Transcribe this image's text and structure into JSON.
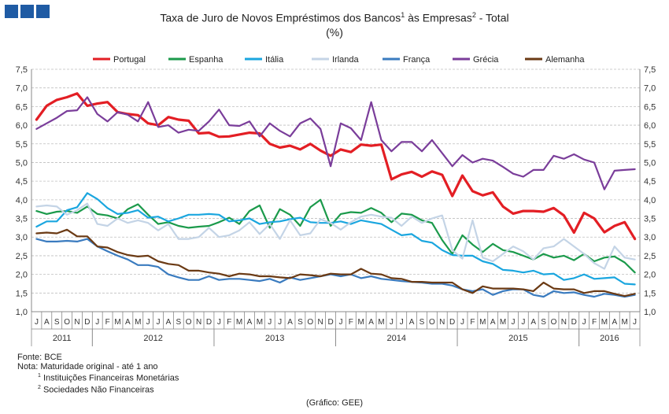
{
  "brand": {
    "squares": [
      "#1f5ba4",
      "#1f5ba4",
      "#1f5ba4"
    ]
  },
  "title": {
    "main": "Taxa de Juro de Novos Empréstimos dos Bancos",
    "sup1": "1",
    "mid": " às Empresas",
    "sup2": "2",
    "tail": " - Total",
    "unit": "(%)"
  },
  "notes": {
    "fonte": "Fonte: BCE",
    "nota": "Nota: Maturidade original - até 1 ano",
    "n1_sup": "1",
    "n1": " Instituições Financeiras Monetárias",
    "n2_sup": "2",
    "n2": " Sociedades Não Financeiras"
  },
  "credit": "(Gráfico: GEE)",
  "chart_data": {
    "type": "line",
    "ylim": [
      1.0,
      7.5
    ],
    "yticks": [
      "1,0",
      "1,5",
      "2,0",
      "2,5",
      "3,0",
      "3,5",
      "4,0",
      "4,5",
      "5,0",
      "5,5",
      "6,0",
      "6,5",
      "7,0",
      "7,5"
    ],
    "grid": true,
    "legend_position": "top",
    "months": [
      "J",
      "A",
      "S",
      "O",
      "N",
      "D",
      "J",
      "F",
      "M",
      "A",
      "M",
      "J",
      "J",
      "A",
      "S",
      "O",
      "N",
      "D",
      "J",
      "F",
      "M",
      "A",
      "M",
      "J",
      "J",
      "A",
      "S",
      "O",
      "N",
      "D",
      "J",
      "F",
      "M",
      "A",
      "M",
      "J",
      "J",
      "A",
      "S",
      "O",
      "N",
      "D",
      "J",
      "F",
      "M",
      "A",
      "M",
      "J",
      "J",
      "A",
      "S",
      "O",
      "N",
      "D",
      "J",
      "F",
      "M",
      "A",
      "M",
      "J"
    ],
    "years": [
      {
        "label": "2011",
        "start": 0,
        "end": 6
      },
      {
        "label": "2012",
        "start": 6,
        "end": 18
      },
      {
        "label": "2013",
        "start": 18,
        "end": 30
      },
      {
        "label": "2014",
        "start": 30,
        "end": 42
      },
      {
        "label": "2015",
        "start": 42,
        "end": 54
      },
      {
        "label": "2016",
        "start": 54,
        "end": 60
      }
    ],
    "series": [
      {
        "name": "Portugal",
        "color": "#e31e24",
        "width": 3.2,
        "values": [
          6.15,
          6.52,
          6.68,
          6.75,
          6.85,
          6.52,
          6.58,
          6.62,
          6.35,
          6.3,
          6.27,
          6.05,
          6.0,
          6.22,
          6.15,
          6.12,
          5.78,
          5.8,
          5.69,
          5.7,
          5.75,
          5.8,
          5.78,
          5.5,
          5.4,
          5.45,
          5.35,
          5.5,
          5.32,
          5.18,
          5.35,
          5.28,
          5.48,
          5.45,
          5.48,
          4.55,
          4.68,
          4.75,
          4.62,
          4.76,
          4.67,
          4.1,
          4.65,
          4.23,
          4.12,
          4.2,
          3.82,
          3.63,
          3.7,
          3.7,
          3.68,
          3.78,
          3.58,
          3.12,
          3.65,
          3.5,
          3.13,
          3.3,
          3.4,
          2.95
        ]
      },
      {
        "name": "Espanha",
        "color": "#1b9a4b",
        "width": 2.2,
        "values": [
          3.7,
          3.62,
          3.68,
          3.7,
          3.65,
          3.82,
          3.62,
          3.58,
          3.5,
          3.75,
          3.88,
          3.6,
          3.35,
          3.4,
          3.3,
          3.25,
          3.28,
          3.3,
          3.4,
          3.52,
          3.35,
          3.7,
          3.85,
          3.25,
          3.75,
          3.6,
          3.3,
          3.8,
          4.0,
          3.3,
          3.62,
          3.67,
          3.65,
          3.78,
          3.65,
          3.4,
          3.63,
          3.6,
          3.45,
          3.38,
          2.92,
          2.55,
          3.05,
          2.8,
          2.6,
          2.82,
          2.65,
          2.6,
          2.5,
          2.4,
          2.55,
          2.45,
          2.5,
          2.38,
          2.55,
          2.35,
          2.45,
          2.48,
          2.32,
          2.05
        ]
      },
      {
        "name": "Itália",
        "color": "#1aa6df",
        "width": 2.2,
        "values": [
          3.28,
          3.42,
          3.42,
          3.72,
          3.8,
          4.18,
          4.02,
          3.78,
          3.62,
          3.65,
          3.72,
          3.52,
          3.55,
          3.42,
          3.5,
          3.6,
          3.6,
          3.62,
          3.6,
          3.42,
          3.45,
          3.5,
          3.35,
          3.4,
          3.42,
          3.48,
          3.52,
          3.4,
          3.38,
          3.38,
          3.42,
          3.35,
          3.45,
          3.4,
          3.35,
          3.2,
          3.05,
          3.08,
          2.9,
          2.85,
          2.65,
          2.52,
          2.5,
          2.5,
          2.35,
          2.28,
          2.12,
          2.1,
          2.05,
          2.1,
          2.0,
          2.02,
          1.85,
          1.9,
          2.0,
          1.88,
          1.9,
          1.92,
          1.75,
          1.73
        ]
      },
      {
        "name": "Irlanda",
        "color": "#c4d4e6",
        "width": 2.2,
        "values": [
          3.82,
          3.85,
          3.82,
          3.6,
          3.72,
          3.9,
          3.35,
          3.3,
          3.5,
          3.38,
          3.45,
          3.38,
          3.18,
          3.35,
          2.95,
          2.95,
          3.0,
          3.25,
          3.0,
          3.05,
          3.18,
          3.4,
          3.08,
          3.35,
          2.95,
          3.45,
          3.05,
          3.1,
          3.48,
          3.38,
          3.2,
          3.4,
          3.55,
          3.6,
          3.55,
          3.52,
          3.3,
          3.55,
          3.38,
          3.5,
          3.58,
          2.65,
          2.42,
          3.45,
          2.45,
          2.35,
          2.55,
          2.75,
          2.62,
          2.4,
          2.7,
          2.75,
          2.95,
          2.75,
          2.55,
          2.3,
          2.15,
          2.75,
          2.45,
          2.4
        ]
      },
      {
        "name": "França",
        "color": "#3a7bbf",
        "width": 2.2,
        "values": [
          2.95,
          2.88,
          2.88,
          2.9,
          2.88,
          2.95,
          2.75,
          2.62,
          2.5,
          2.4,
          2.25,
          2.25,
          2.2,
          2.0,
          1.92,
          1.85,
          1.85,
          1.95,
          1.85,
          1.88,
          1.88,
          1.85,
          1.82,
          1.88,
          1.78,
          1.92,
          1.85,
          1.9,
          1.95,
          2.0,
          1.95,
          2.0,
          1.9,
          1.95,
          1.88,
          1.85,
          1.82,
          1.8,
          1.78,
          1.75,
          1.75,
          1.7,
          1.6,
          1.55,
          1.6,
          1.45,
          1.55,
          1.6,
          1.6,
          1.45,
          1.4,
          1.55,
          1.5,
          1.52,
          1.45,
          1.4,
          1.48,
          1.45,
          1.4,
          1.45
        ]
      },
      {
        "name": "Grécia",
        "color": "#7a3d9a",
        "width": 2.2,
        "values": [
          5.9,
          6.05,
          6.2,
          6.38,
          6.4,
          6.75,
          6.3,
          6.1,
          6.35,
          6.28,
          6.1,
          6.62,
          5.95,
          6.0,
          5.8,
          5.88,
          5.85,
          6.1,
          6.42,
          6.0,
          5.98,
          6.1,
          5.7,
          6.05,
          5.85,
          5.7,
          6.05,
          6.18,
          5.9,
          4.9,
          6.05,
          5.92,
          5.6,
          6.62,
          5.6,
          5.3,
          5.55,
          5.55,
          5.3,
          5.6,
          5.25,
          4.9,
          5.2,
          5.0,
          5.1,
          5.05,
          4.88,
          4.7,
          4.62,
          4.8,
          4.8,
          5.18,
          5.1,
          5.22,
          5.08,
          5.0,
          4.28,
          4.78,
          4.8,
          4.82
        ]
      },
      {
        "name": "Alemanha",
        "color": "#6b3a14",
        "width": 2.2,
        "values": [
          3.1,
          3.12,
          3.1,
          3.2,
          3.02,
          3.02,
          2.75,
          2.72,
          2.6,
          2.52,
          2.48,
          2.5,
          2.35,
          2.28,
          2.25,
          2.1,
          2.1,
          2.05,
          2.02,
          1.95,
          2.02,
          2.0,
          1.95,
          1.95,
          1.92,
          1.9,
          2.0,
          1.98,
          1.95,
          2.02,
          2.0,
          2.0,
          2.15,
          2.02,
          2.0,
          1.9,
          1.88,
          1.8,
          1.8,
          1.78,
          1.78,
          1.78,
          1.6,
          1.5,
          1.68,
          1.62,
          1.62,
          1.62,
          1.6,
          1.55,
          1.78,
          1.62,
          1.6,
          1.6,
          1.5,
          1.55,
          1.55,
          1.48,
          1.42,
          1.48
        ]
      }
    ]
  }
}
